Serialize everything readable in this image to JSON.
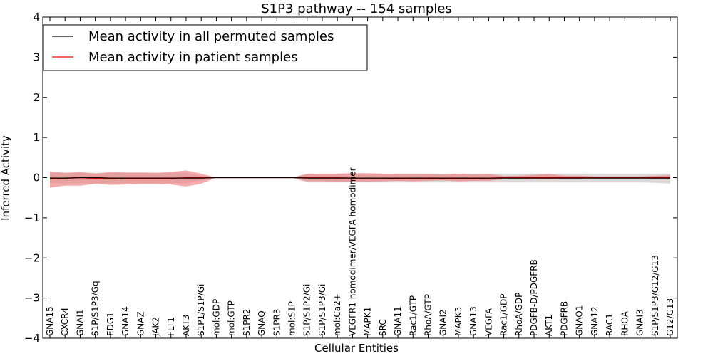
{
  "chart_data": {
    "type": "line",
    "title": "S1P3 pathway -- 154 samples",
    "xlabel": "Cellular Entities",
    "ylabel": "Inferred Activity",
    "ylim": [
      -4,
      4
    ],
    "yticks": [
      -4,
      -3,
      -2,
      -1,
      0,
      1,
      2,
      3,
      4
    ],
    "ytick_labels": [
      "−4",
      "−3",
      "−2",
      "−1",
      "0",
      "1",
      "2",
      "3",
      "4"
    ],
    "legend_position": "top-left",
    "categories": [
      "GNA15",
      "CXCR4",
      "GNAI1",
      "S1P/S1P3/Gq",
      "EDG1",
      "GNA14",
      "GNAZ",
      "JAK2",
      "FLT1",
      "AKT3",
      "S1P1/S1P/Gi",
      "mol:GDP",
      "mol:GTP",
      "S1PR2",
      "GNAQ",
      "S1PR3",
      "mol:S1P",
      "S1P/S1P2/Gi",
      "S1P/S1P3/Gi",
      "mol:Ca2+",
      "VEGFR1 homodimer/VEGFA homodimer",
      "MAPK1",
      "SRC",
      "GNA11",
      "Rac1/GTP",
      "RhoA/GTP",
      "GNAI2",
      "MAPK3",
      "GNA13",
      "VEGFA",
      "Rac1/GDP",
      "RhoA/GDP",
      "PDGFB-D/PDGFRB",
      "AKT1",
      "PDGFRB",
      "GNAO1",
      "GNA12",
      "RAC1",
      "RHOA",
      "GNAI3",
      "S1P/S1P3/G12/G13",
      "G12/G13"
    ],
    "series": [
      {
        "name": "Mean activity in all permuted samples",
        "color": "#000000",
        "band_color": "#bbbbbb",
        "values": [
          -0.01,
          -0.01,
          0,
          0,
          -0.01,
          -0.01,
          -0.01,
          -0.01,
          -0.01,
          -0.01,
          -0.01,
          0,
          0,
          0,
          0,
          0,
          0,
          -0.01,
          -0.01,
          -0.01,
          -0.01,
          -0.01,
          -0.01,
          -0.01,
          -0.01,
          -0.01,
          -0.01,
          -0.01,
          -0.01,
          -0.01,
          -0.01,
          -0.01,
          -0.01,
          -0.01,
          -0.01,
          -0.01,
          -0.01,
          -0.01,
          -0.01,
          -0.01,
          -0.01,
          -0.01
        ],
        "band_upper": [
          0.12,
          0.12,
          0.12,
          0.12,
          0.12,
          0.12,
          0.12,
          0.12,
          0.12,
          0.12,
          0.05,
          0,
          0,
          0,
          0,
          0,
          0,
          0.1,
          0.1,
          0.1,
          0.1,
          0.1,
          0.1,
          0.1,
          0.1,
          0.1,
          0.1,
          0.1,
          0.1,
          0.1,
          0.1,
          0.1,
          0.1,
          0.1,
          0.1,
          0.1,
          0.1,
          0.1,
          0.1,
          0.1,
          0.1,
          0.1
        ],
        "band_lower": [
          -0.14,
          -0.14,
          -0.14,
          -0.14,
          -0.14,
          -0.14,
          -0.14,
          -0.14,
          -0.14,
          -0.14,
          -0.07,
          0,
          0,
          0,
          0,
          0,
          0,
          -0.12,
          -0.12,
          -0.12,
          -0.12,
          -0.12,
          -0.12,
          -0.12,
          -0.12,
          -0.12,
          -0.12,
          -0.12,
          -0.12,
          -0.12,
          -0.12,
          -0.12,
          -0.12,
          -0.12,
          -0.12,
          -0.12,
          -0.12,
          -0.12,
          -0.12,
          -0.12,
          -0.13,
          -0.15
        ]
      },
      {
        "name": "Mean activity in patient samples",
        "color": "#ff0000",
        "band_color": "#f08080",
        "values": [
          -0.03,
          -0.02,
          0,
          -0.02,
          -0.03,
          -0.02,
          -0.02,
          -0.02,
          -0.02,
          0,
          0,
          0,
          0,
          0,
          0,
          0,
          0,
          0,
          0,
          0,
          -0.01,
          -0.01,
          -0.01,
          -0.02,
          -0.02,
          -0.02,
          -0.02,
          -0.02,
          -0.02,
          -0.01,
          0,
          0,
          0.01,
          0.01,
          0.01,
          0.01,
          0,
          0,
          0,
          0,
          0.01,
          0.01
        ],
        "band_upper": [
          0.15,
          0.12,
          0.14,
          0.1,
          0.14,
          0.13,
          0.13,
          0.12,
          0.14,
          0.18,
          0.1,
          0,
          0,
          0,
          0,
          0,
          0,
          0.09,
          0.1,
          0.1,
          0.11,
          0.11,
          0.1,
          0.09,
          0.09,
          0.09,
          0.08,
          0.1,
          0.08,
          0.09,
          0.04,
          0.05,
          0.07,
          0.09,
          0.05,
          0.05,
          0.03,
          0.03,
          0.03,
          0.03,
          0.05,
          0.06
        ],
        "band_lower": [
          -0.25,
          -0.2,
          -0.2,
          -0.15,
          -0.18,
          -0.17,
          -0.16,
          -0.16,
          -0.17,
          -0.22,
          -0.15,
          0,
          0,
          0,
          0,
          0,
          0,
          -0.09,
          -0.09,
          -0.1,
          -0.1,
          -0.1,
          -0.09,
          -0.08,
          -0.09,
          -0.08,
          -0.07,
          -0.09,
          -0.08,
          -0.08,
          -0.04,
          -0.04,
          -0.03,
          -0.04,
          -0.02,
          -0.02,
          -0.02,
          -0.02,
          -0.02,
          -0.02,
          -0.02,
          -0.02
        ]
      }
    ]
  }
}
